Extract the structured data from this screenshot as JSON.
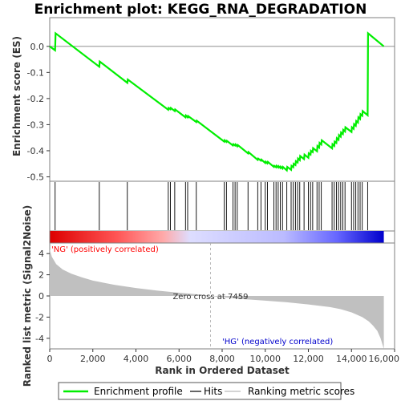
{
  "chart_data": {
    "type": "line",
    "title": "Enrichment plot: KEGG_RNA_DEGRADATION",
    "es_panel": {
      "ylabel": "Enrichment score (ES)",
      "ylim": [
        -0.52,
        0.11
      ],
      "yticks": [
        0.0,
        -0.1,
        -0.2,
        -0.3,
        -0.4,
        -0.5
      ],
      "ytick_labels": [
        "0.0",
        "-0.1",
        "-0.2",
        "-0.3",
        "-0.4",
        "-0.5"
      ]
    },
    "xlim": [
      0,
      16000
    ],
    "xticks": [
      0,
      2000,
      4000,
      6000,
      8000,
      10000,
      12000,
      14000,
      16000
    ],
    "xtick_labels": [
      "0",
      "2,000",
      "4,000",
      "6,000",
      "8,000",
      "10,000",
      "12,000",
      "14,000",
      "16,000"
    ],
    "xlabel": "Rank in Ordered Dataset",
    "n_genes": 15500,
    "series": [
      {
        "name": "Enrichment profile",
        "color": "#00ee00",
        "x": [
          0,
          250,
          270,
          2300,
          2320,
          3600,
          3620,
          5500,
          5520,
          5600,
          5620,
          5800,
          5820,
          6300,
          6320,
          6400,
          6420,
          6800,
          6820,
          8100,
          8120,
          8200,
          8220,
          8500,
          8520,
          8600,
          8620,
          8700,
          8720,
          9200,
          9220,
          9650,
          9670,
          9800,
          9820,
          10000,
          10020,
          10100,
          10120,
          10400,
          10420,
          10500,
          10520,
          10600,
          10620,
          10700,
          10720,
          10800,
          10820,
          11000,
          11020,
          11200,
          11220,
          11300,
          11320,
          11400,
          11420,
          11500,
          11520,
          11600,
          11620,
          11800,
          11820,
          12000,
          12020,
          12100,
          12120,
          12200,
          12220,
          12400,
          12420,
          12500,
          12520,
          12600,
          12620,
          13100,
          13120,
          13200,
          13220,
          13300,
          13320,
          13400,
          13420,
          13500,
          13520,
          13600,
          13620,
          13700,
          13720,
          14000,
          14020,
          14100,
          14120,
          14200,
          14220,
          14300,
          14320,
          14400,
          14420,
          14500,
          14520,
          14750,
          14770,
          15500
        ],
        "y": [
          0.0,
          -0.015,
          0.05,
          -0.078,
          -0.058,
          -0.14,
          -0.127,
          -0.243,
          -0.236,
          -0.241,
          -0.236,
          -0.248,
          -0.242,
          -0.272,
          -0.265,
          -0.272,
          -0.267,
          -0.29,
          -0.285,
          -0.365,
          -0.36,
          -0.366,
          -0.362,
          -0.38,
          -0.375,
          -0.38,
          -0.376,
          -0.383,
          -0.378,
          -0.41,
          -0.405,
          -0.435,
          -0.43,
          -0.438,
          -0.434,
          -0.447,
          -0.442,
          -0.448,
          -0.443,
          -0.462,
          -0.458,
          -0.463,
          -0.458,
          -0.464,
          -0.459,
          -0.466,
          -0.461,
          -0.468,
          -0.462,
          -0.475,
          -0.462,
          -0.473,
          -0.458,
          -0.463,
          -0.45,
          -0.455,
          -0.44,
          -0.445,
          -0.43,
          -0.436,
          -0.42,
          -0.432,
          -0.415,
          -0.427,
          -0.41,
          -0.415,
          -0.4,
          -0.405,
          -0.39,
          -0.402,
          -0.382,
          -0.388,
          -0.37,
          -0.376,
          -0.36,
          -0.391,
          -0.375,
          -0.381,
          -0.365,
          -0.37,
          -0.352,
          -0.358,
          -0.34,
          -0.346,
          -0.33,
          -0.336,
          -0.32,
          -0.326,
          -0.31,
          -0.328,
          -0.31,
          -0.316,
          -0.298,
          -0.304,
          -0.286,
          -0.292,
          -0.272,
          -0.278,
          -0.26,
          -0.266,
          -0.248,
          -0.264,
          0.05,
          0.0
        ]
      }
    ],
    "hits": [
      250,
      2300,
      3600,
      5500,
      5600,
      5800,
      6300,
      6400,
      6800,
      8100,
      8200,
      8500,
      8600,
      8700,
      9200,
      9650,
      9800,
      10000,
      10100,
      10400,
      10500,
      10600,
      10700,
      10800,
      11000,
      11200,
      11300,
      11400,
      11500,
      11600,
      11800,
      12000,
      12100,
      12200,
      12400,
      12500,
      12600,
      13100,
      13200,
      13300,
      13400,
      13500,
      13600,
      13700,
      14000,
      14100,
      14200,
      14300,
      14400,
      14500,
      14750
    ],
    "metric_panel": {
      "ylabel": "Ranked list metric (Signal2Noise)",
      "ylim": [
        -5,
        5
      ],
      "yticks": [
        4,
        2,
        0,
        -2,
        -4
      ],
      "ytick_labels": [
        "4",
        "2",
        "0",
        "-2",
        "-4"
      ],
      "x": [
        0,
        100,
        300,
        600,
        1000,
        1500,
        2000,
        3000,
        4000,
        5000,
        6000,
        7000,
        7459,
        8000,
        9000,
        10000,
        11000,
        12000,
        13000,
        13500,
        14000,
        14500,
        14800,
        15000,
        15200,
        15350,
        15500
      ],
      "y": [
        4.4,
        3.7,
        3.0,
        2.5,
        2.1,
        1.75,
        1.45,
        1.05,
        0.75,
        0.5,
        0.3,
        0.12,
        0.0,
        -0.12,
        -0.3,
        -0.45,
        -0.6,
        -0.8,
        -1.05,
        -1.25,
        -1.55,
        -2.0,
        -2.4,
        -2.8,
        -3.3,
        -4.0,
        -5.0
      ]
    },
    "annotations": {
      "pos_label": "'NG' (positively correlated)",
      "neg_label": "'HG' (negatively correlated)",
      "zero_cross_text": "Zero cross at 7459",
      "zero_cross": 7459
    },
    "legend": {
      "placement": "bottom",
      "items": [
        {
          "label": "Enrichment profile",
          "color": "#00ee00",
          "style": "line"
        },
        {
          "label": "Hits",
          "color": "#000000",
          "style": "line"
        },
        {
          "label": "Ranking metric scores",
          "color": "#bbbbbb",
          "style": "line"
        }
      ]
    },
    "colors": {
      "positive": "#ff0000",
      "negative": "#0000cc",
      "neutral": "#d8d8ff",
      "metric_fill": "#c0c0c0",
      "frame": "#7f7f7f"
    }
  }
}
